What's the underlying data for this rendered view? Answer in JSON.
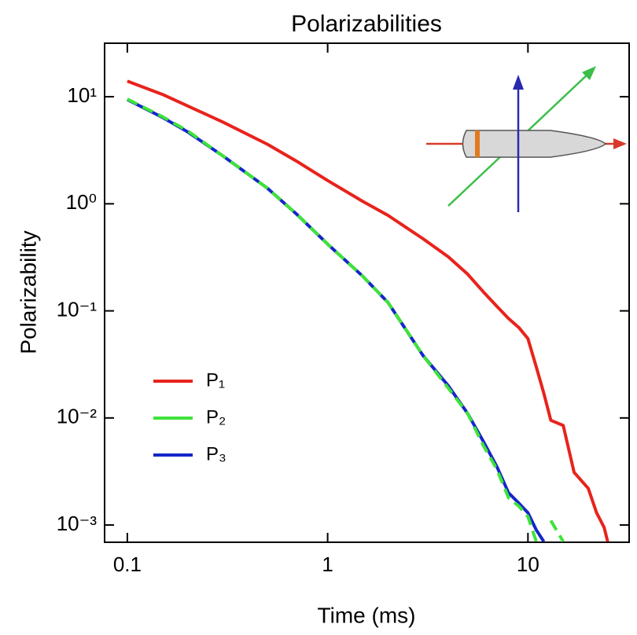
{
  "chart_data": {
    "type": "line",
    "title": "Polarizabilities",
    "x_label": "Time (ms)",
    "y_label": "Polarizability",
    "log_x": true,
    "log_y": true,
    "xlim": [
      0.077,
      32
    ],
    "ylim": [
      0.00069,
      31.6
    ],
    "xticks": [
      0.1,
      1,
      10
    ],
    "yticks": [
      {
        "value": 10,
        "label": "10¹"
      },
      {
        "value": 1,
        "label": "10⁰"
      },
      {
        "value": 0.1,
        "label": "10⁻¹"
      },
      {
        "value": 0.01,
        "label": "10⁻²"
      },
      {
        "value": 0.001,
        "label": "10⁻³"
      }
    ],
    "legend": "lower left",
    "x": [
      0.1,
      0.15,
      0.2,
      0.3,
      0.5,
      0.7,
      1,
      1.5,
      2,
      3,
      4,
      5,
      6,
      7,
      8,
      9,
      10,
      11,
      12,
      13,
      15,
      17,
      20,
      22,
      24,
      25
    ],
    "series": [
      {
        "name": "P₁",
        "color": "#e8231c",
        "values": [
          14,
          10.5,
          8.2,
          5.8,
          3.6,
          2.5,
          1.65,
          1.05,
          0.78,
          0.47,
          0.32,
          0.22,
          0.15,
          0.11,
          0.085,
          0.07,
          0.055,
          0.03,
          0.017,
          0.0095,
          0.0085,
          0.0031,
          0.0022,
          0.0013,
          0.00095,
          0.0007
        ]
      },
      {
        "name": "P₂",
        "color": "#3ee33a",
        "values": [
          9.5,
          6.5,
          4.8,
          2.8,
          1.4,
          0.8,
          0.42,
          0.21,
          0.12,
          0.038,
          0.019,
          0.011,
          0.0055,
          0.0033,
          0.0018,
          0.0015,
          0.0012,
          0.0007,
          null,
          0.0011,
          0.0007,
          null,
          null,
          null,
          null,
          null
        ]
      },
      {
        "name": "P₃",
        "color": "#1526c8",
        "values": [
          9.4,
          6.4,
          4.7,
          2.8,
          1.4,
          0.8,
          0.42,
          0.21,
          0.12,
          0.038,
          0.02,
          0.011,
          0.006,
          0.0035,
          0.002,
          0.0016,
          0.0013,
          0.0009,
          0.0007,
          null,
          null,
          null,
          null,
          null,
          null,
          null
        ]
      }
    ]
  }
}
